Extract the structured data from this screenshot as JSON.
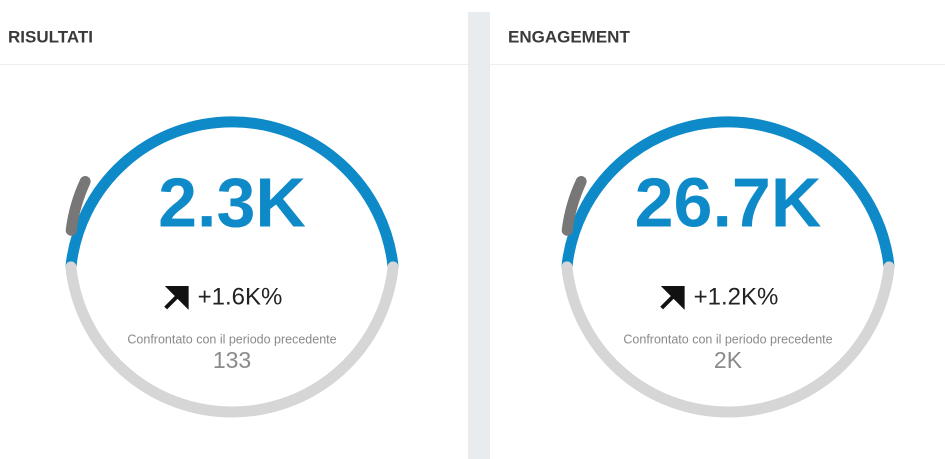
{
  "panels": [
    {
      "title": "RISULTATI",
      "value": "2.3K",
      "change": "+1.6K%",
      "comparison_label": "Confrontato con il periodo precedente",
      "previous": "133"
    },
    {
      "title": "ENGAGEMENT",
      "value": "26.7K",
      "change": "+1.2K%",
      "comparison_label": "Confrontato con il periodo precedente",
      "previous": "2K"
    }
  ]
}
